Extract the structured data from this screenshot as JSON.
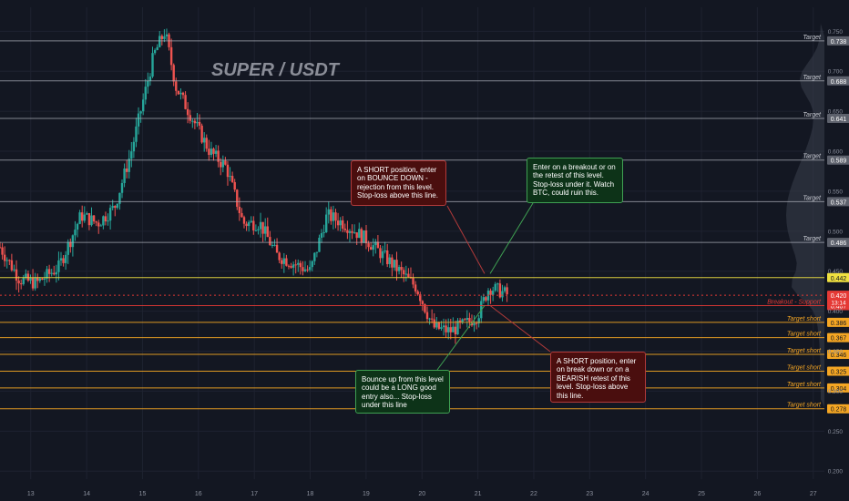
{
  "title": "SUPER / USDT",
  "colors": {
    "background": "#131722",
    "grid": "#1e2230",
    "target_line": "#b2b5be",
    "short_line": "#f5a623",
    "resistance_line": "#f0e040",
    "support_line": "#e53935",
    "price_line": "#e53935",
    "candle_up": "#26a69a",
    "candle_down": "#ef5350",
    "axis_text": "#8a8f9c",
    "volume_profile": "#3b3f4d"
  },
  "chart_data": {
    "type": "candlestick",
    "title": "SUPER / USDT",
    "yaxis_ticks": [
      "0.750",
      "0.700",
      "0.650",
      "0.600",
      "0.550",
      "0.500",
      "0.450",
      "0.400",
      "0.350",
      "0.300",
      "0.250",
      "0.200"
    ],
    "xaxis_ticks": [
      "13",
      "14",
      "15",
      "16",
      "17",
      "18",
      "19",
      "20",
      "21",
      "22",
      "23",
      "24",
      "25",
      "26",
      "27"
    ],
    "ylim": [
      0.19,
      0.78
    ],
    "xlim": [
      12.45,
      27.2
    ],
    "price_path": [
      [
        12.45,
        0.48
      ],
      [
        12.8,
        0.44
      ],
      [
        13.1,
        0.435
      ],
      [
        13.5,
        0.455
      ],
      [
        13.9,
        0.52
      ],
      [
        14.2,
        0.51
      ],
      [
        14.5,
        0.53
      ],
      [
        14.8,
        0.6
      ],
      [
        15.0,
        0.66
      ],
      [
        15.2,
        0.72
      ],
      [
        15.4,
        0.75
      ],
      [
        15.6,
        0.68
      ],
      [
        15.9,
        0.64
      ],
      [
        16.2,
        0.6
      ],
      [
        16.5,
        0.58
      ],
      [
        16.8,
        0.51
      ],
      [
        17.1,
        0.51
      ],
      [
        17.4,
        0.47
      ],
      [
        17.7,
        0.46
      ],
      [
        18.0,
        0.45
      ],
      [
        18.3,
        0.52
      ],
      [
        18.6,
        0.51
      ],
      [
        19.0,
        0.49
      ],
      [
        19.3,
        0.47
      ],
      [
        19.6,
        0.45
      ],
      [
        19.9,
        0.43
      ],
      [
        20.2,
        0.38
      ],
      [
        20.5,
        0.375
      ],
      [
        20.8,
        0.385
      ],
      [
        21.0,
        0.395
      ],
      [
        21.2,
        0.43
      ],
      [
        21.4,
        0.425
      ],
      [
        21.55,
        0.42
      ]
    ],
    "current_price": "0.420",
    "countdown": "13:14",
    "levels": [
      {
        "value": 0.738,
        "tag": "0.738",
        "label": "Target",
        "kind": "target"
      },
      {
        "value": 0.688,
        "tag": "0.688",
        "label": "Target",
        "kind": "target"
      },
      {
        "value": 0.641,
        "tag": "0.641",
        "label": "Target",
        "kind": "target"
      },
      {
        "value": 0.589,
        "tag": "0.589",
        "label": "Target",
        "kind": "target"
      },
      {
        "value": 0.537,
        "tag": "0.537",
        "label": "Target",
        "kind": "target"
      },
      {
        "value": 0.486,
        "tag": "0.486",
        "label": "Target",
        "kind": "target"
      },
      {
        "value": 0.442,
        "tag": "0.442",
        "label": "",
        "kind": "resistance"
      },
      {
        "value": 0.407,
        "tag": "0.407",
        "label": "Breakout - Support",
        "kind": "support"
      },
      {
        "value": 0.386,
        "tag": "0.386",
        "label": "Target short",
        "kind": "short"
      },
      {
        "value": 0.367,
        "tag": "0.367",
        "label": "Target short",
        "kind": "short"
      },
      {
        "value": 0.346,
        "tag": "0.346",
        "label": "Target short",
        "kind": "short"
      },
      {
        "value": 0.325,
        "tag": "0.325",
        "label": "Target short",
        "kind": "short"
      },
      {
        "value": 0.304,
        "tag": "0.304",
        "label": "Target short",
        "kind": "short"
      },
      {
        "value": 0.278,
        "tag": "0.278",
        "label": "Target short",
        "kind": "short"
      }
    ],
    "annotations": [
      {
        "id": "short-bounce",
        "text": "A SHORT position, enter on BOUNCE DOWN - rejection from this level. Stop-loss above this line.",
        "style": "red",
        "target": [
          21.12,
          0.447
        ]
      },
      {
        "id": "long-breakout",
        "text": "Enter on a breakout or on the retest of this level. Stop-loss under it. Watch BTC, could ruin this.",
        "style": "green",
        "target": [
          21.22,
          0.447
        ]
      },
      {
        "id": "long-bounce",
        "text": "Bounce up from this level could be a LONG good entry also... Stop-loss under this line",
        "style": "green",
        "target": [
          21.12,
          0.407
        ]
      },
      {
        "id": "short-breakdown",
        "text": "A SHORT position, enter on break down or on a BEARISH retest of this level. Stop-loss above this line.",
        "style": "red",
        "target": [
          21.22,
          0.407
        ]
      }
    ]
  }
}
